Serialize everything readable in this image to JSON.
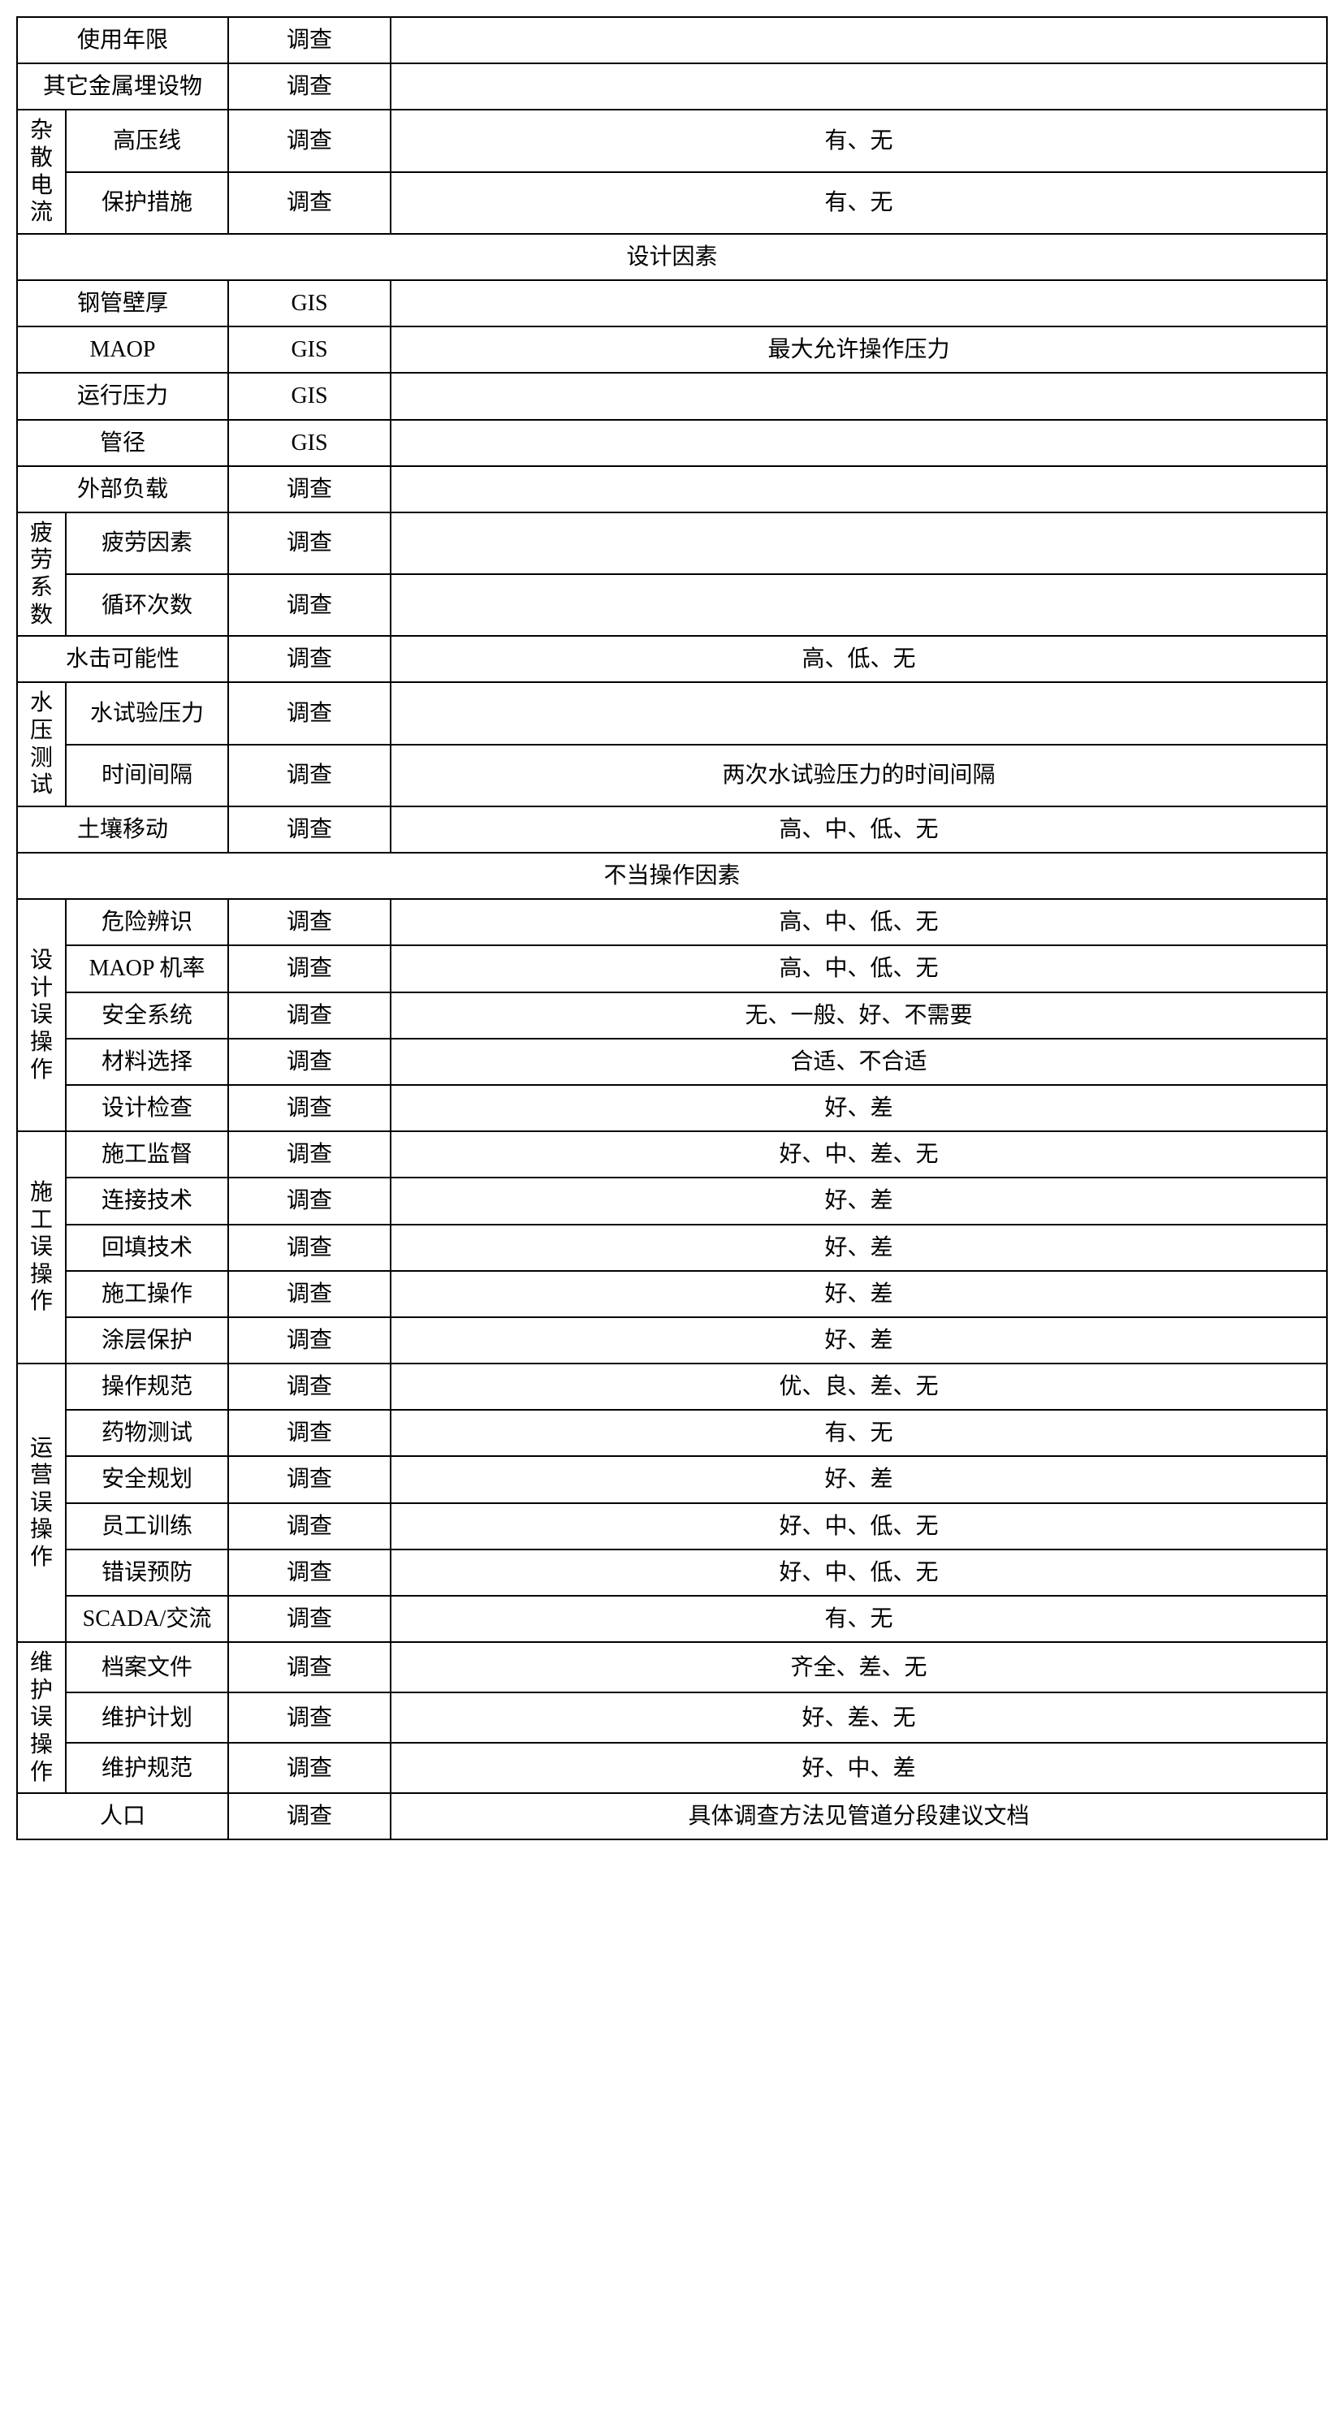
{
  "rows": [
    {
      "type": "simple",
      "col1": "使用年限",
      "col2": "调查",
      "col3": ""
    },
    {
      "type": "simple",
      "col1": "其它金属埋设物",
      "col2": "调查",
      "col3": ""
    },
    {
      "type": "grouped",
      "group": "杂散电流",
      "items": [
        {
          "item": "高压线",
          "method": "调查",
          "desc": "有、无"
        },
        {
          "item": "保护措施",
          "method": "调查",
          "desc": "有、无"
        }
      ]
    },
    {
      "type": "section",
      "title": "设计因素"
    },
    {
      "type": "simple",
      "col1": "钢管壁厚",
      "col2": "GIS",
      "col3": ""
    },
    {
      "type": "simple",
      "col1": "MAOP",
      "col2": "GIS",
      "col3": "最大允许操作压力"
    },
    {
      "type": "simple",
      "col1": "运行压力",
      "col2": "GIS",
      "col3": ""
    },
    {
      "type": "simple",
      "col1": "管径",
      "col2": "GIS",
      "col3": ""
    },
    {
      "type": "simple",
      "col1": "外部负载",
      "col2": "调查",
      "col3": ""
    },
    {
      "type": "grouped",
      "group": "疲劳系数",
      "items": [
        {
          "item": "疲劳因素",
          "method": "调查",
          "desc": ""
        },
        {
          "item": "循环次数",
          "method": "调查",
          "desc": ""
        }
      ]
    },
    {
      "type": "simple",
      "col1": "水击可能性",
      "col2": "调查",
      "col3": "高、低、无"
    },
    {
      "type": "grouped",
      "group": "水压测试",
      "items": [
        {
          "item": "水试验压力",
          "method": "调查",
          "desc": ""
        },
        {
          "item": "时间间隔",
          "method": "调查",
          "desc": "两次水试验压力的时间间隔"
        }
      ]
    },
    {
      "type": "simple",
      "col1": "土壤移动",
      "col2": "调查",
      "col3": "高、中、低、无"
    },
    {
      "type": "section",
      "title": "不当操作因素"
    },
    {
      "type": "grouped",
      "group": "设计误操作",
      "items": [
        {
          "item": "危险辨识",
          "method": "调查",
          "desc": "高、中、低、无"
        },
        {
          "item": "MAOP 机率",
          "method": "调查",
          "desc": "高、中、低、无"
        },
        {
          "item": "安全系统",
          "method": "调查",
          "desc": "无、一般、好、不需要"
        },
        {
          "item": "材料选择",
          "method": "调查",
          "desc": "合适、不合适"
        },
        {
          "item": "设计检查",
          "method": "调查",
          "desc": "好、差"
        }
      ]
    },
    {
      "type": "grouped",
      "group": "施工误操作",
      "items": [
        {
          "item": "施工监督",
          "method": "调查",
          "desc": "好、中、差、无"
        },
        {
          "item": "连接技术",
          "method": "调查",
          "desc": "好、差"
        },
        {
          "item": "回填技术",
          "method": "调查",
          "desc": "好、差"
        },
        {
          "item": "施工操作",
          "method": "调查",
          "desc": "好、差"
        },
        {
          "item": "涂层保护",
          "method": "调查",
          "desc": "好、差"
        }
      ]
    },
    {
      "type": "grouped",
      "group": "运营误操作",
      "items": [
        {
          "item": "操作规范",
          "method": "调查",
          "desc": "优、良、差、无"
        },
        {
          "item": "药物测试",
          "method": "调查",
          "desc": "有、无"
        },
        {
          "item": "安全规划",
          "method": "调查",
          "desc": "好、差"
        },
        {
          "item": "员工训练",
          "method": "调查",
          "desc": "好、中、低、无"
        },
        {
          "item": "错误预防",
          "method": "调查",
          "desc": "好、中、低、无"
        },
        {
          "item": "SCADA/交流",
          "method": "调查",
          "desc": "有、无"
        }
      ]
    },
    {
      "type": "grouped",
      "group": "维护误操作",
      "items": [
        {
          "item": "档案文件",
          "method": "调查",
          "desc": "齐全、差、无"
        },
        {
          "item": "维护计划",
          "method": "调查",
          "desc": "好、差、无"
        },
        {
          "item": "维护规范",
          "method": "调查",
          "desc": "好、中、差"
        }
      ]
    },
    {
      "type": "simple",
      "col1": "人口",
      "col2": "调查",
      "col3": "具体调查方法见管道分段建议文档"
    }
  ],
  "style": {
    "border_color": "#000000",
    "background_color": "#ffffff",
    "font_family": "SimSun",
    "font_size": 28,
    "border_width": 2
  }
}
